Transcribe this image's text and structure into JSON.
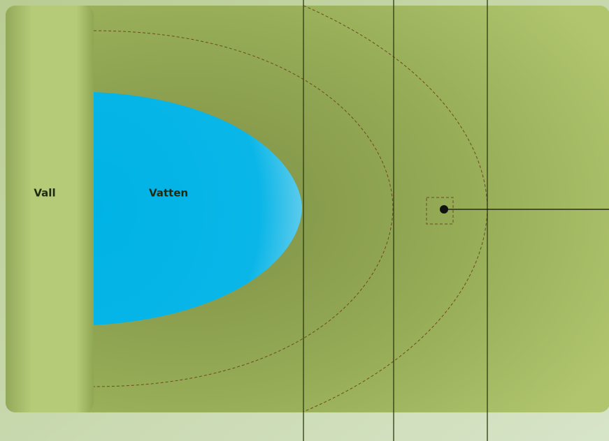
{
  "labels": {
    "wall": "Vall",
    "water": "Vatten"
  }
}
